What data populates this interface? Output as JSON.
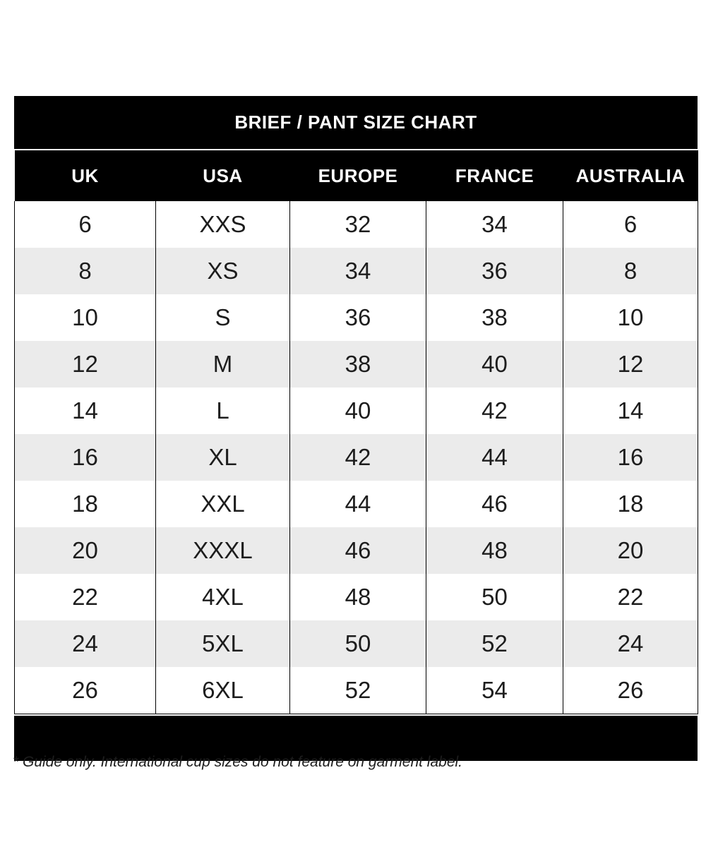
{
  "chart_data": {
    "type": "table",
    "title": "BRIEF / PANT SIZE CHART",
    "columns": [
      "UK",
      "USA",
      "EUROPE",
      "FRANCE",
      "AUSTRALIA"
    ],
    "rows": [
      [
        "6",
        "XXS",
        "32",
        "34",
        "6"
      ],
      [
        "8",
        "XS",
        "34",
        "36",
        "8"
      ],
      [
        "10",
        "S",
        "36",
        "38",
        "10"
      ],
      [
        "12",
        "M",
        "38",
        "40",
        "12"
      ],
      [
        "14",
        "L",
        "40",
        "42",
        "14"
      ],
      [
        "16",
        "XL",
        "42",
        "44",
        "16"
      ],
      [
        "18",
        "XXL",
        "44",
        "46",
        "18"
      ],
      [
        "20",
        "XXXL",
        "46",
        "48",
        "20"
      ],
      [
        "22",
        "4XL",
        "48",
        "50",
        "22"
      ],
      [
        "24",
        "5XL",
        "50",
        "52",
        "24"
      ],
      [
        "26",
        "6XL",
        "52",
        "54",
        "26"
      ]
    ],
    "layout_hints": {
      "striped": true,
      "stripe_start": "second_row",
      "column_dividers": true,
      "header_position": "top",
      "empty_footer_bar": true
    }
  },
  "footnote": "* Guide only. International cup sizes do not feature on garment label.",
  "colors": {
    "bar_bg": "#000000",
    "bar_text": "#ffffff",
    "row_bg": "#ffffff",
    "row_alt_bg": "#ebebeb",
    "body_text": "#1d1d1d",
    "divider": "#000000"
  }
}
